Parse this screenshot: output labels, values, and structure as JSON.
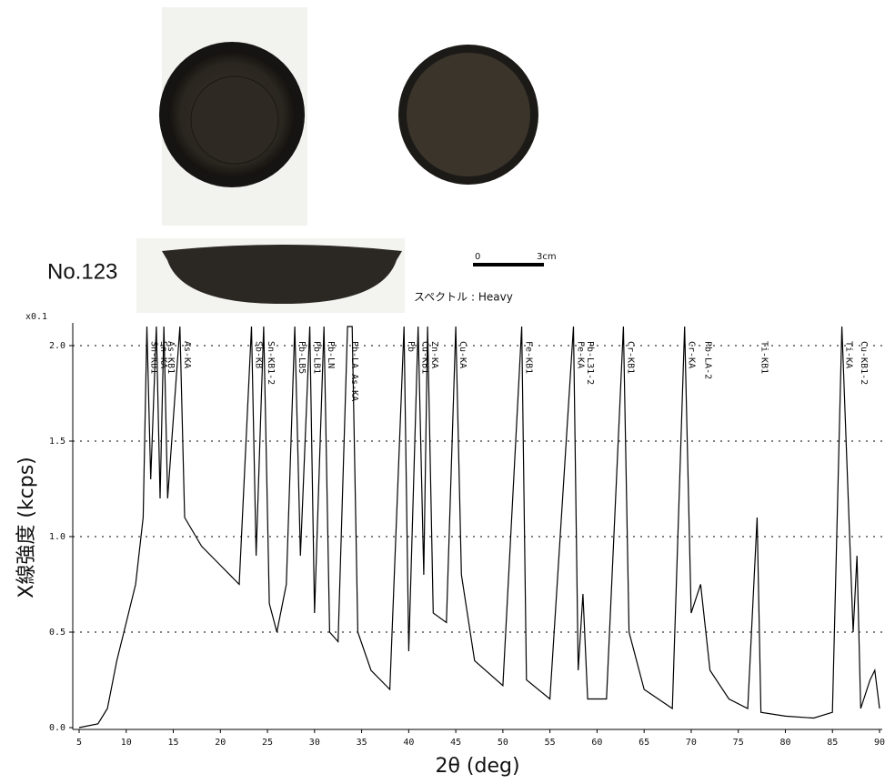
{
  "header": {
    "number": "No.123"
  },
  "scale_bar": {
    "zero": "0",
    "length": "3cm"
  },
  "chart_data": {
    "type": "line",
    "subtitle": "スペクトル : Heavy",
    "y_multiplier": "x0.1",
    "x_label": "2θ (deg)",
    "y_label": "X線強度 (kcps)",
    "color": "#000000",
    "grid": true,
    "xlim": [
      5,
      90
    ],
    "ylim": [
      0,
      2.1
    ],
    "xticks": [
      5,
      10,
      15,
      20,
      25,
      30,
      35,
      40,
      45,
      50,
      55,
      60,
      65,
      70,
      75,
      80,
      85,
      90
    ],
    "yticks": [
      {
        "value": 0,
        "label": "0.0"
      },
      {
        "value": 0.5,
        "label": "0.5"
      },
      {
        "value": 1,
        "label": "1.0"
      },
      {
        "value": 1.5,
        "label": "1.5"
      },
      {
        "value": 2,
        "label": "2.0"
      }
    ],
    "x": [
      5,
      7,
      8,
      9,
      10,
      11,
      11.8,
      12.2,
      12.6,
      13.2,
      13.6,
      14.0,
      14.4,
      15.7,
      16.2,
      18,
      20,
      22,
      23.3,
      23.8,
      24.6,
      25.2,
      26,
      27,
      27.9,
      28.5,
      29.5,
      30,
      31.0,
      31.6,
      32.5,
      33.5,
      34.0,
      34.6,
      36,
      38,
      39.5,
      40,
      41,
      41.6,
      42,
      42.6,
      44,
      45.0,
      45.6,
      47,
      50,
      52,
      52.5,
      55,
      57.5,
      58,
      58.5,
      59,
      61,
      62.8,
      63.4,
      65,
      68,
      69.3,
      70,
      71,
      72,
      74,
      76,
      77,
      77.4,
      80,
      83,
      85,
      86,
      86.6,
      87.2,
      87.6,
      88,
      89,
      89.5,
      90
    ],
    "values": [
      0.0,
      0.02,
      0.1,
      0.35,
      0.55,
      0.75,
      1.1,
      2.1,
      1.3,
      2.1,
      1.2,
      2.1,
      1.2,
      2.1,
      1.1,
      0.95,
      0.85,
      0.75,
      2.1,
      0.9,
      2.1,
      0.65,
      0.5,
      0.75,
      2.1,
      0.9,
      2.1,
      0.6,
      2.1,
      0.5,
      0.45,
      2.1,
      2.1,
      0.5,
      0.3,
      0.2,
      2.1,
      0.4,
      2.1,
      0.8,
      2.1,
      0.6,
      0.55,
      2.1,
      0.8,
      0.35,
      0.22,
      2.1,
      0.25,
      0.15,
      2.1,
      0.3,
      0.7,
      0.15,
      0.15,
      2.1,
      0.5,
      0.2,
      0.1,
      2.1,
      0.6,
      0.75,
      0.3,
      0.15,
      0.1,
      1.1,
      0.08,
      0.06,
      0.05,
      0.08,
      2.1,
      1.3,
      0.5,
      0.9,
      0.1,
      0.25,
      0.3,
      0.1
    ],
    "peaks": [
      {
        "label": "Sn-KB1",
        "x": 12.2
      },
      {
        "label": "Sn-KA",
        "x": 13.2
      },
      {
        "label": "As-KB1",
        "x": 14.0
      },
      {
        "label": "As-KA",
        "x": 15.7
      },
      {
        "label": "Sb-KB",
        "x": 23.3
      },
      {
        "label": "Sn-KB1-2",
        "x": 24.6
      },
      {
        "label": "Pb-LB5",
        "x": 27.9
      },
      {
        "label": "Pb-LB1",
        "x": 29.5
      },
      {
        "label": "Pb-LN",
        "x": 31.0
      },
      {
        "label": "Pb-LA As-KA",
        "x": 33.5
      },
      {
        "label": "Pb",
        "x": 39.5
      },
      {
        "label": "Cu-KB1",
        "x": 41.0
      },
      {
        "label": "Zn-KA",
        "x": 42.0
      },
      {
        "label": "Cu-KA",
        "x": 45.0
      },
      {
        "label": "Fe-KB1",
        "x": 52.0
      },
      {
        "label": "Fe-KA",
        "x": 57.5
      },
      {
        "label": "Pb-L31-2",
        "x": 58.5
      },
      {
        "label": "Cr-KB1",
        "x": 62.8
      },
      {
        "label": "Cr-KA",
        "x": 69.3
      },
      {
        "label": "Pb-LA-2",
        "x": 71.0
      },
      {
        "label": "Ti-KB1",
        "x": 77.0
      },
      {
        "label": "Ti-KA",
        "x": 86.0
      },
      {
        "label": "Cu-KB1-2",
        "x": 87.6
      }
    ]
  }
}
